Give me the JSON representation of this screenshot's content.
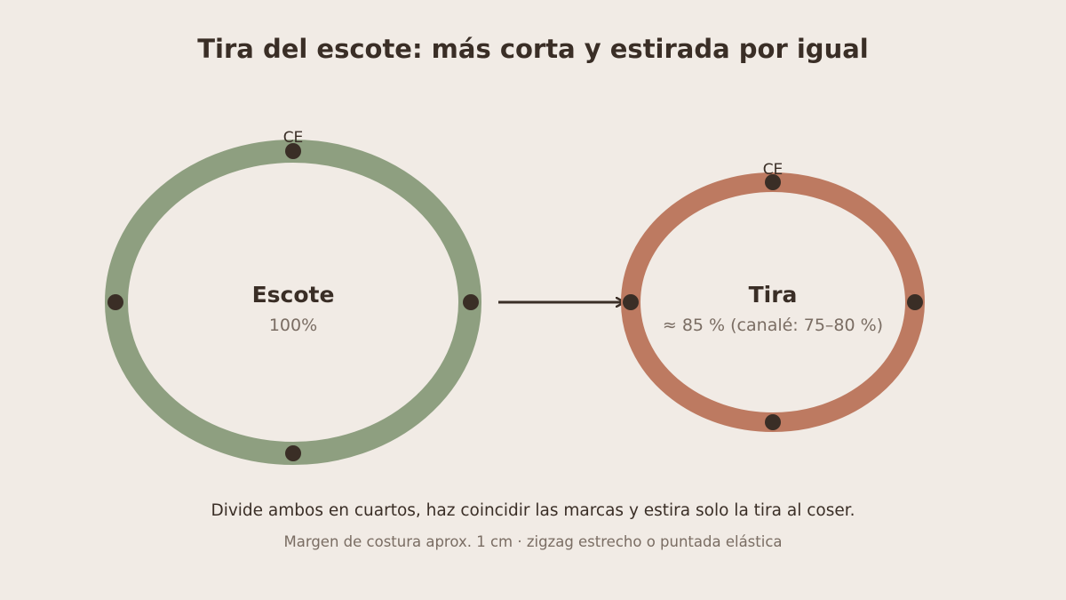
{
  "title": "Tira del escote: más corta y estirada por igual",
  "colors": {
    "background": "#f1ebe5",
    "escote_ring": "#8e9f80",
    "tira_ring": "#bd7a61",
    "marks": "#3a2e26",
    "text": "#3a2e26",
    "muted_text": "#7a6d63"
  },
  "escote": {
    "label": "Escote",
    "value": "100%",
    "mark_label": "CE"
  },
  "tira": {
    "label": "Tira",
    "value": "≈ 85 % (canalé: 75–80 %)",
    "mark_label": "CE"
  },
  "instruction": "Divide ambos en cuartos, haz coincidir las marcas y estira solo la tira al coser.",
  "note": "Margen de costura aprox. 1 cm · zigzag estrecho o puntada elástica"
}
